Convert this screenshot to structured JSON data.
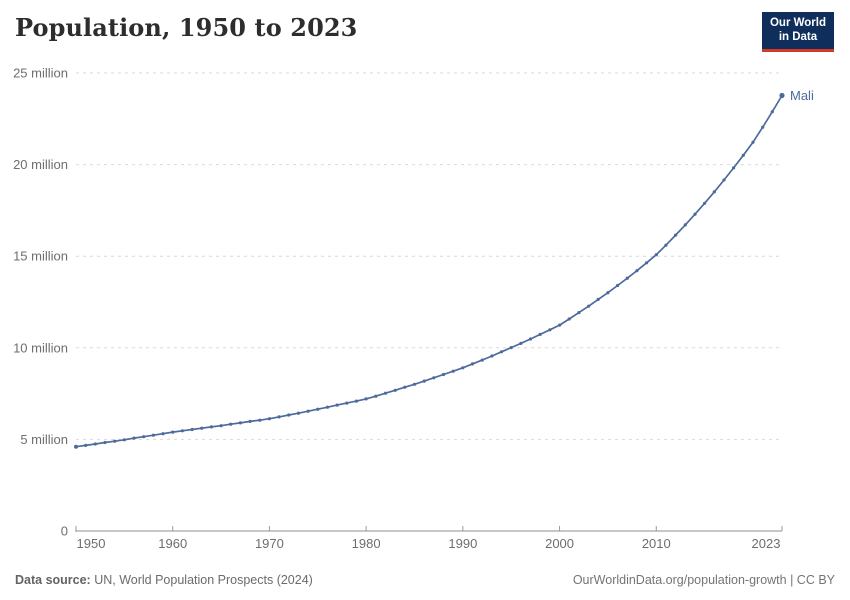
{
  "header": {
    "title": "Population, 1950 to 2023",
    "logo": {
      "line1": "Our World",
      "line2": "in Data"
    }
  },
  "footer": {
    "source_label": "Data source:",
    "source_text": " UN, World Population Prospects (2024)",
    "credit": "OurWorldinData.org/population-growth | CC BY"
  },
  "colors": {
    "line": "#4c6a9c",
    "entity_label": "#4c6a9c",
    "axis_text": "#6e6e6e",
    "gridline": "#d9d9d9",
    "axis_line": "#8f8f8f",
    "tick_mark": "#9a9a9a",
    "title": "#2d2d2d",
    "logo_bg": "#0f2e5c",
    "logo_accent": "#d23a28"
  },
  "chart_data": {
    "type": "line",
    "title": "Population, 1950 to 2023",
    "unit": "million",
    "grid": true,
    "legend_position": "end-of-line",
    "ylim": [
      0,
      25
    ],
    "yticks": [
      {
        "value": 0,
        "label": "0"
      },
      {
        "value": 5,
        "label": "5 million"
      },
      {
        "value": 10,
        "label": "10 million"
      },
      {
        "value": 15,
        "label": "15 million"
      },
      {
        "value": 20,
        "label": "20 million"
      },
      {
        "value": 25,
        "label": "25 million"
      }
    ],
    "xticks": [
      {
        "value": 1950,
        "label": "1950"
      },
      {
        "value": 1960,
        "label": "1960"
      },
      {
        "value": 1970,
        "label": "1970"
      },
      {
        "value": 1980,
        "label": "1980"
      },
      {
        "value": 1990,
        "label": "1990"
      },
      {
        "value": 2000,
        "label": "2000"
      },
      {
        "value": 2010,
        "label": "2010"
      },
      {
        "value": 2023,
        "label": "2023"
      }
    ],
    "x": [
      1950,
      1951,
      1952,
      1953,
      1954,
      1955,
      1956,
      1957,
      1958,
      1959,
      1960,
      1961,
      1962,
      1963,
      1964,
      1965,
      1966,
      1967,
      1968,
      1969,
      1970,
      1971,
      1972,
      1973,
      1974,
      1975,
      1976,
      1977,
      1978,
      1979,
      1980,
      1981,
      1982,
      1983,
      1984,
      1985,
      1986,
      1987,
      1988,
      1989,
      1990,
      1991,
      1992,
      1993,
      1994,
      1995,
      1996,
      1997,
      1998,
      1999,
      2000,
      2001,
      2002,
      2003,
      2004,
      2005,
      2006,
      2007,
      2008,
      2009,
      2010,
      2011,
      2012,
      2013,
      2014,
      2015,
      2016,
      2017,
      2018,
      2019,
      2020,
      2021,
      2022,
      2023
    ],
    "series": [
      {
        "name": "Mali",
        "color": "#4c6a9c",
        "values": [
          4.6,
          4.67,
          4.75,
          4.83,
          4.9,
          4.98,
          5.07,
          5.15,
          5.23,
          5.31,
          5.4,
          5.47,
          5.54,
          5.61,
          5.68,
          5.75,
          5.83,
          5.9,
          5.98,
          6.05,
          6.13,
          6.23,
          6.33,
          6.43,
          6.54,
          6.65,
          6.76,
          6.87,
          6.98,
          7.09,
          7.21,
          7.36,
          7.52,
          7.68,
          7.85,
          8.01,
          8.18,
          8.36,
          8.54,
          8.72,
          8.91,
          9.12,
          9.33,
          9.55,
          9.78,
          10.01,
          10.24,
          10.48,
          10.73,
          10.98,
          11.24,
          11.57,
          11.92,
          12.27,
          12.64,
          13.01,
          13.4,
          13.8,
          14.21,
          14.64,
          15.08,
          15.6,
          16.15,
          16.71,
          17.29,
          17.89,
          18.51,
          19.16,
          19.82,
          20.51,
          21.22,
          22.04,
          22.89,
          23.77
        ]
      }
    ]
  }
}
